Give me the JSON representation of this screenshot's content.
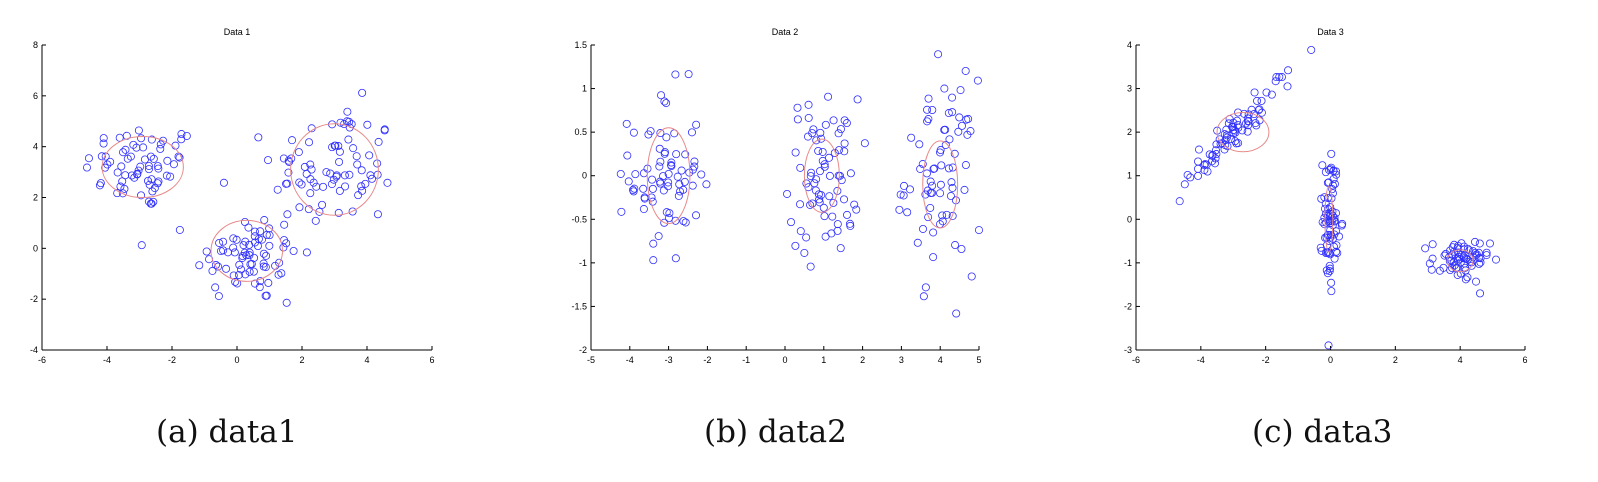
{
  "figure": {
    "captions": [
      "(a) data1",
      "(b) data2",
      "(c) data3"
    ]
  },
  "colors": {
    "point": "#2f2fff",
    "ellipse": "#e88a8a",
    "axis": "#000000"
  },
  "chart_data": [
    {
      "type": "scatter",
      "title": "Data 1",
      "xlim": [
        -6,
        6
      ],
      "ylim": [
        -4,
        8
      ],
      "xticks": [
        -6,
        -4,
        -2,
        0,
        2,
        4,
        6
      ],
      "yticks": [
        -4,
        -2,
        0,
        2,
        4,
        6,
        8
      ],
      "grid": false,
      "clusters": [
        {
          "cx": -2.9,
          "cy": 3.2,
          "sx": 0.9,
          "sy": 0.85,
          "n": 70
        },
        {
          "cx": 0.3,
          "cy": -0.3,
          "sx": 0.8,
          "sy": 0.9,
          "n": 75
        },
        {
          "cx": 3.0,
          "cy": 3.1,
          "sx": 0.95,
          "sy": 1.25,
          "n": 80
        }
      ],
      "ellipses": [
        {
          "cx": -2.9,
          "cy": 3.2,
          "rx": 1.25,
          "ry": 1.2
        },
        {
          "cx": 0.3,
          "cy": -0.1,
          "rx": 1.1,
          "ry": 1.2
        },
        {
          "cx": 3.0,
          "cy": 3.1,
          "rx": 1.35,
          "ry": 1.8
        }
      ]
    },
    {
      "type": "scatter",
      "title": "Data 2",
      "xlim": [
        -5,
        5
      ],
      "ylim": [
        -2,
        1.5
      ],
      "xticks": [
        -5,
        -4,
        -3,
        -2,
        -1,
        0,
        1,
        2,
        3,
        4,
        5
      ],
      "yticks": [
        -2,
        -1.5,
        -1,
        -0.5,
        0,
        0.5,
        1,
        1.5
      ],
      "grid": false,
      "clusters": [
        {
          "cx": -3.1,
          "cy": 0.0,
          "sx": 0.45,
          "sy": 0.5,
          "n": 75
        },
        {
          "cx": 1.0,
          "cy": 0.0,
          "sx": 0.45,
          "sy": 0.45,
          "n": 75
        },
        {
          "cx": 4.0,
          "cy": 0.0,
          "sx": 0.45,
          "sy": 0.55,
          "n": 75
        }
      ],
      "ellipses": [
        {
          "cx": -3.0,
          "cy": 0.0,
          "rx": 0.55,
          "ry": 0.55
        },
        {
          "cx": 0.95,
          "cy": 0.0,
          "rx": 0.45,
          "ry": 0.42
        },
        {
          "cx": 4.0,
          "cy": -0.1,
          "rx": 0.45,
          "ry": 0.5
        }
      ]
    },
    {
      "type": "scatter",
      "title": "Data 3",
      "xlim": [
        -6,
        6
      ],
      "ylim": [
        -3,
        4
      ],
      "xticks": [
        -6,
        -4,
        -2,
        0,
        2,
        4,
        6
      ],
      "yticks": [
        -3,
        -2,
        -1,
        0,
        1,
        2,
        3,
        4
      ],
      "grid": false,
      "clusters": [
        {
          "cx": -3.0,
          "cy": 2.0,
          "sx": 0.8,
          "sy": 0.2,
          "n": 80,
          "corr": 0.9,
          "slope": 0.75
        },
        {
          "cx": 0.0,
          "cy": 0.0,
          "sx": 0.12,
          "sy": 0.75,
          "n": 80
        },
        {
          "cx": 4.0,
          "cy": -0.95,
          "sx": 0.45,
          "sy": 0.25,
          "n": 70
        }
      ],
      "ellipses": [
        {
          "cx": -2.7,
          "cy": 2.0,
          "rx": 0.8,
          "ry": 0.45
        },
        {
          "cx": -0.05,
          "cy": 0.0,
          "rx": 0.12,
          "ry": 0.75
        },
        {
          "cx": 4.0,
          "cy": -0.95,
          "rx": 0.4,
          "ry": 0.25
        }
      ]
    }
  ]
}
